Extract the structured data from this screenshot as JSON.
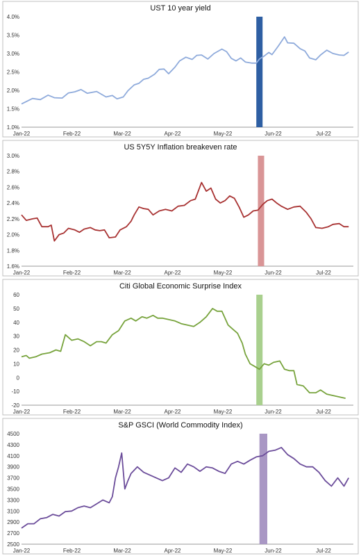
{
  "chart_data": [
    {
      "type": "line",
      "title": "UST 10 year yield",
      "xlabel": "",
      "ylabel": "",
      "x_ticks": [
        "Jan-22",
        "Feb-22",
        "Mar-22",
        "Apr-22",
        "May-22",
        "Jun-22",
        "Jul-22"
      ],
      "y_ticks": [
        "1.0%",
        "1.5%",
        "2.0%",
        "2.5%",
        "3.0%",
        "3.5%",
        "4.0%"
      ],
      "ylim": [
        1.0,
        4.0
      ],
      "grid": false,
      "line_color": "#8eaadb",
      "highlight": {
        "start_day": 150,
        "end_day": 154,
        "color": "#2e5fa3"
      },
      "points": [
        [
          0,
          1.63
        ],
        [
          7,
          1.78
        ],
        [
          12,
          1.75
        ],
        [
          17,
          1.87
        ],
        [
          21,
          1.8
        ],
        [
          26,
          1.79
        ],
        [
          30,
          1.93
        ],
        [
          34,
          1.96
        ],
        [
          38,
          2.02
        ],
        [
          42,
          1.92
        ],
        [
          48,
          1.97
        ],
        [
          54,
          1.82
        ],
        [
          58,
          1.86
        ],
        [
          61,
          1.77
        ],
        [
          65,
          1.82
        ],
        [
          68,
          1.99
        ],
        [
          72,
          2.15
        ],
        [
          75,
          2.19
        ],
        [
          78,
          2.3
        ],
        [
          81,
          2.33
        ],
        [
          85,
          2.44
        ],
        [
          88,
          2.57
        ],
        [
          91,
          2.58
        ],
        [
          94,
          2.45
        ],
        [
          98,
          2.63
        ],
        [
          101,
          2.8
        ],
        [
          105,
          2.9
        ],
        [
          109,
          2.84
        ],
        [
          112,
          2.95
        ],
        [
          115,
          2.96
        ],
        [
          119,
          2.85
        ],
        [
          123,
          3.0
        ],
        [
          128,
          3.12
        ],
        [
          131,
          3.05
        ],
        [
          134,
          2.87
        ],
        [
          137,
          2.8
        ],
        [
          140,
          2.88
        ],
        [
          143,
          2.77
        ],
        [
          147,
          2.74
        ],
        [
          150,
          2.74
        ],
        [
          152,
          2.85
        ],
        [
          155,
          2.93
        ],
        [
          158,
          3.03
        ],
        [
          160,
          2.97
        ],
        [
          164,
          3.2
        ],
        [
          168,
          3.45
        ],
        [
          170,
          3.29
        ],
        [
          174,
          3.28
        ],
        [
          178,
          3.13
        ],
        [
          181,
          3.07
        ],
        [
          184,
          2.88
        ],
        [
          188,
          2.83
        ],
        [
          191,
          2.96
        ],
        [
          195,
          3.09
        ],
        [
          199,
          3.0
        ],
        [
          203,
          2.96
        ],
        [
          206,
          2.95
        ],
        [
          209,
          3.04
        ]
      ]
    },
    {
      "type": "line",
      "title": "US 5Y5Y Inflation breakeven rate",
      "xlabel": "",
      "ylabel": "",
      "x_ticks": [
        "Jan-22",
        "Feb-22",
        "Mar-22",
        "Apr-22",
        "May-22",
        "Jun-22",
        "Jul-22"
      ],
      "y_ticks": [
        "1.6%",
        "1.8%",
        "2.0%",
        "2.2%",
        "2.4%",
        "2.6%",
        "2.8%",
        "3.0%"
      ],
      "ylim": [
        1.6,
        3.0
      ],
      "grid": false,
      "line_color": "#a83232",
      "highlight": {
        "start_day": 151,
        "end_day": 155,
        "color": "#d99596"
      },
      "points": [
        [
          0,
          2.25
        ],
        [
          3,
          2.18
        ],
        [
          7,
          2.2
        ],
        [
          10,
          2.21
        ],
        [
          13,
          2.1
        ],
        [
          17,
          2.1
        ],
        [
          19,
          2.12
        ],
        [
          21,
          1.92
        ],
        [
          24,
          2.0
        ],
        [
          27,
          2.02
        ],
        [
          30,
          2.08
        ],
        [
          34,
          2.06
        ],
        [
          37,
          2.03
        ],
        [
          40,
          2.07
        ],
        [
          44,
          2.09
        ],
        [
          47,
          2.06
        ],
        [
          50,
          2.05
        ],
        [
          53,
          2.06
        ],
        [
          56,
          1.96
        ],
        [
          60,
          1.97
        ],
        [
          63,
          2.06
        ],
        [
          67,
          2.1
        ],
        [
          70,
          2.17
        ],
        [
          72,
          2.25
        ],
        [
          75,
          2.35
        ],
        [
          78,
          2.33
        ],
        [
          81,
          2.32
        ],
        [
          84,
          2.25
        ],
        [
          88,
          2.3
        ],
        [
          92,
          2.32
        ],
        [
          96,
          2.3
        ],
        [
          100,
          2.36
        ],
        [
          104,
          2.37
        ],
        [
          108,
          2.43
        ],
        [
          111,
          2.45
        ],
        [
          115,
          2.66
        ],
        [
          118,
          2.55
        ],
        [
          121,
          2.59
        ],
        [
          124,
          2.45
        ],
        [
          127,
          2.4
        ],
        [
          130,
          2.43
        ],
        [
          133,
          2.49
        ],
        [
          136,
          2.46
        ],
        [
          139,
          2.35
        ],
        [
          142,
          2.22
        ],
        [
          145,
          2.25
        ],
        [
          148,
          2.3
        ],
        [
          151,
          2.31
        ],
        [
          154,
          2.38
        ],
        [
          157,
          2.43
        ],
        [
          160,
          2.45
        ],
        [
          163,
          2.4
        ],
        [
          166,
          2.36
        ],
        [
          170,
          2.32
        ],
        [
          174,
          2.35
        ],
        [
          178,
          2.36
        ],
        [
          182,
          2.28
        ],
        [
          185,
          2.2
        ],
        [
          188,
          2.09
        ],
        [
          192,
          2.08
        ],
        [
          196,
          2.1
        ],
        [
          199,
          2.13
        ],
        [
          203,
          2.14
        ],
        [
          206,
          2.1
        ],
        [
          209,
          2.1
        ]
      ]
    },
    {
      "type": "line",
      "title": "Citi Global Economic Surprise Index",
      "xlabel": "",
      "ylabel": "",
      "x_ticks": [
        "Jan-22",
        "Feb-22",
        "Mar-22",
        "Apr-22",
        "May-22",
        "Jun-22",
        "Jul-22"
      ],
      "y_ticks": [
        "-20",
        "-10",
        "0",
        "10",
        "20",
        "30",
        "40",
        "50",
        "60"
      ],
      "ylim": [
        -20,
        60
      ],
      "grid": false,
      "line_color": "#77a33c",
      "highlight": {
        "start_day": 150,
        "end_day": 154,
        "color": "#a9d08e"
      },
      "points": [
        [
          0,
          15
        ],
        [
          3,
          16
        ],
        [
          5,
          14
        ],
        [
          9,
          15
        ],
        [
          13,
          17
        ],
        [
          18,
          18
        ],
        [
          22,
          20
        ],
        [
          25,
          19
        ],
        [
          28,
          31
        ],
        [
          32,
          27
        ],
        [
          36,
          28
        ],
        [
          40,
          26
        ],
        [
          44,
          23
        ],
        [
          48,
          26
        ],
        [
          51,
          26
        ],
        [
          54,
          25
        ],
        [
          58,
          31
        ],
        [
          62,
          34
        ],
        [
          66,
          41
        ],
        [
          70,
          43
        ],
        [
          73,
          41
        ],
        [
          77,
          44
        ],
        [
          80,
          43
        ],
        [
          84,
          45
        ],
        [
          87,
          43
        ],
        [
          90,
          43
        ],
        [
          94,
          42
        ],
        [
          98,
          41
        ],
        [
          102,
          39
        ],
        [
          106,
          38
        ],
        [
          110,
          37
        ],
        [
          114,
          40
        ],
        [
          118,
          44
        ],
        [
          122,
          50
        ],
        [
          125,
          48
        ],
        [
          128,
          48
        ],
        [
          132,
          38
        ],
        [
          135,
          35
        ],
        [
          138,
          32
        ],
        [
          141,
          25
        ],
        [
          143,
          17
        ],
        [
          146,
          10
        ],
        [
          149,
          8
        ],
        [
          152,
          6
        ],
        [
          155,
          10
        ],
        [
          158,
          9
        ],
        [
          161,
          11
        ],
        [
          165,
          12
        ],
        [
          168,
          6
        ],
        [
          171,
          5
        ],
        [
          174,
          5
        ],
        [
          176,
          -5
        ],
        [
          180,
          -6
        ],
        [
          184,
          -11
        ],
        [
          188,
          -11
        ],
        [
          191,
          -9
        ],
        [
          195,
          -12
        ],
        [
          199,
          -13
        ],
        [
          203,
          -14
        ],
        [
          207,
          -15
        ]
      ]
    },
    {
      "type": "line",
      "title": "S&P GSCI (World Commodity Index)",
      "xlabel": "",
      "ylabel": "",
      "x_ticks": [
        "Jan-22",
        "Feb-22",
        "Mar-22",
        "Apr-22",
        "May-22",
        "Jun-22",
        "Jul-22"
      ],
      "y_ticks": [
        "2500",
        "2700",
        "2900",
        "3100",
        "3300",
        "3500",
        "3700",
        "3900",
        "4100",
        "4300",
        "4500"
      ],
      "ylim": [
        2500,
        4500
      ],
      "grid": false,
      "line_color": "#6b4c9a",
      "highlight": {
        "start_day": 152,
        "end_day": 157,
        "color": "#a997c4"
      },
      "points": [
        [
          0,
          2790
        ],
        [
          4,
          2870
        ],
        [
          8,
          2870
        ],
        [
          12,
          2960
        ],
        [
          16,
          2980
        ],
        [
          20,
          3040
        ],
        [
          24,
          3010
        ],
        [
          28,
          3090
        ],
        [
          32,
          3100
        ],
        [
          36,
          3160
        ],
        [
          40,
          3190
        ],
        [
          44,
          3160
        ],
        [
          48,
          3230
        ],
        [
          52,
          3300
        ],
        [
          56,
          3250
        ],
        [
          58,
          3360
        ],
        [
          60,
          3700
        ],
        [
          62,
          3900
        ],
        [
          64,
          4150
        ],
        [
          66,
          3500
        ],
        [
          68,
          3650
        ],
        [
          70,
          3780
        ],
        [
          74,
          3900
        ],
        [
          78,
          3800
        ],
        [
          82,
          3750
        ],
        [
          86,
          3700
        ],
        [
          90,
          3650
        ],
        [
          94,
          3700
        ],
        [
          98,
          3880
        ],
        [
          102,
          3800
        ],
        [
          106,
          3950
        ],
        [
          110,
          3900
        ],
        [
          114,
          3820
        ],
        [
          118,
          3900
        ],
        [
          122,
          3880
        ],
        [
          126,
          3820
        ],
        [
          130,
          3780
        ],
        [
          134,
          3950
        ],
        [
          138,
          4000
        ],
        [
          142,
          3950
        ],
        [
          146,
          4020
        ],
        [
          150,
          4080
        ],
        [
          154,
          4100
        ],
        [
          158,
          4180
        ],
        [
          162,
          4200
        ],
        [
          166,
          4250
        ],
        [
          170,
          4120
        ],
        [
          174,
          4050
        ],
        [
          178,
          3950
        ],
        [
          182,
          3900
        ],
        [
          186,
          3900
        ],
        [
          190,
          3800
        ],
        [
          194,
          3650
        ],
        [
          198,
          3550
        ],
        [
          202,
          3700
        ],
        [
          206,
          3550
        ],
        [
          209,
          3700
        ]
      ]
    }
  ]
}
